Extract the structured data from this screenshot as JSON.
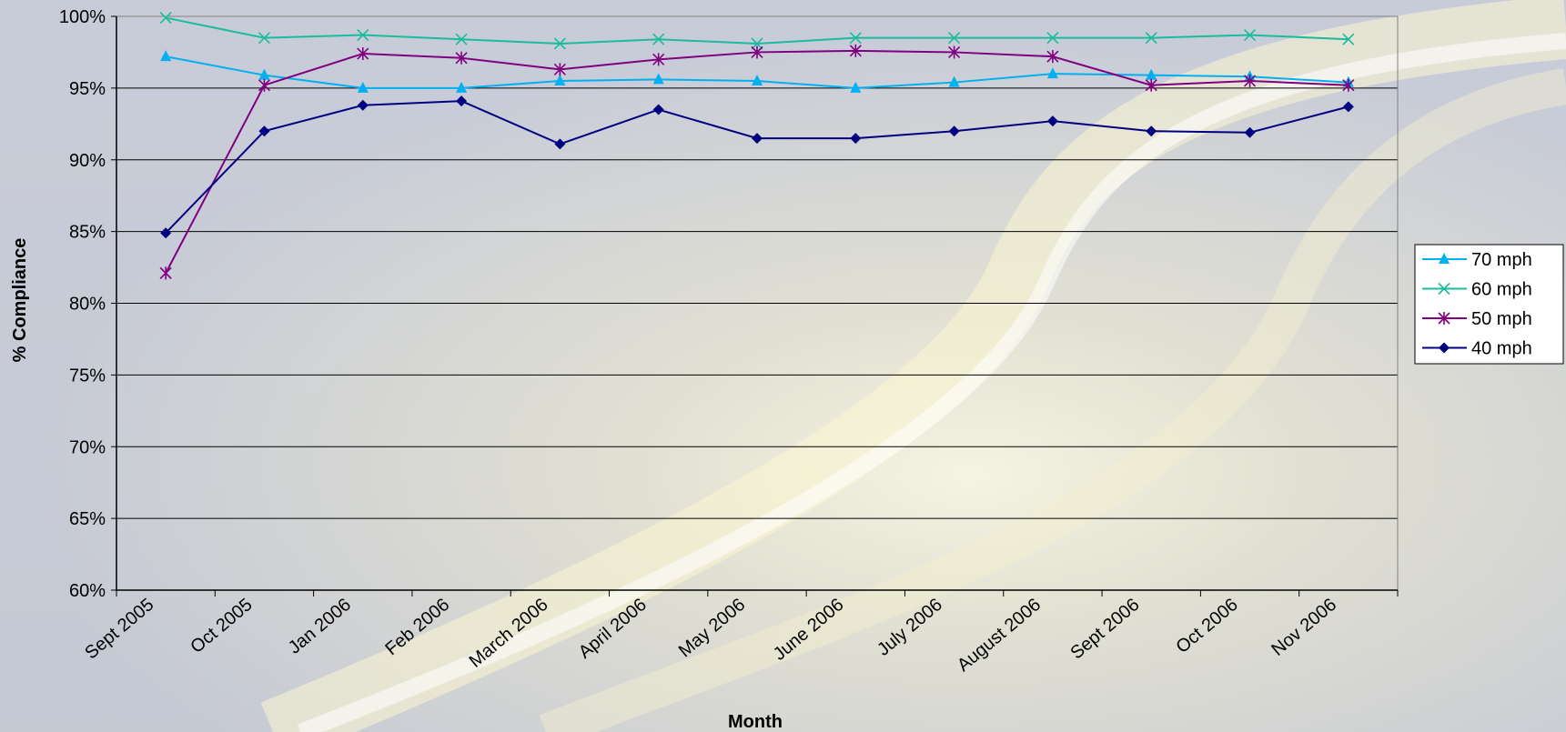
{
  "chart_data": {
    "type": "line",
    "title": "",
    "xlabel": "Month",
    "ylabel": "% Compliance",
    "ylim": [
      60,
      100
    ],
    "ytick_step": 5,
    "ytick_suffix": "%",
    "grid": true,
    "legend_position": "right",
    "categories": [
      "Sept 2005",
      "Oct 2005",
      "Jan 2006",
      "Feb 2006",
      "March 2006",
      "April 2006",
      "May 2006",
      "June 2006",
      "July 2006",
      "August 2006",
      "Sept 2006",
      "Oct 2006",
      "Nov 2006"
    ],
    "series": [
      {
        "name": "70 mph",
        "color": "#00b0f0",
        "marker": "triangle",
        "values": [
          97.2,
          95.9,
          95.0,
          95.0,
          95.5,
          95.6,
          95.5,
          95.0,
          95.4,
          96.0,
          95.9,
          95.8,
          95.4
        ]
      },
      {
        "name": "60 mph",
        "color": "#1abc9c",
        "marker": "x",
        "values": [
          99.9,
          98.5,
          98.7,
          98.4,
          98.1,
          98.4,
          98.1,
          98.5,
          98.5,
          98.5,
          98.5,
          98.7,
          98.4
        ]
      },
      {
        "name": "50 mph",
        "color": "#800080",
        "marker": "asterisk",
        "values": [
          82.1,
          95.2,
          97.4,
          97.1,
          96.3,
          97.0,
          97.5,
          97.6,
          97.5,
          97.2,
          95.2,
          95.5,
          95.2
        ]
      },
      {
        "name": "40 mph",
        "color": "#000080",
        "marker": "diamond",
        "values": [
          84.9,
          92.0,
          93.8,
          94.1,
          91.1,
          93.5,
          91.5,
          91.5,
          92.0,
          92.7,
          92.0,
          91.9,
          93.7
        ]
      }
    ]
  }
}
